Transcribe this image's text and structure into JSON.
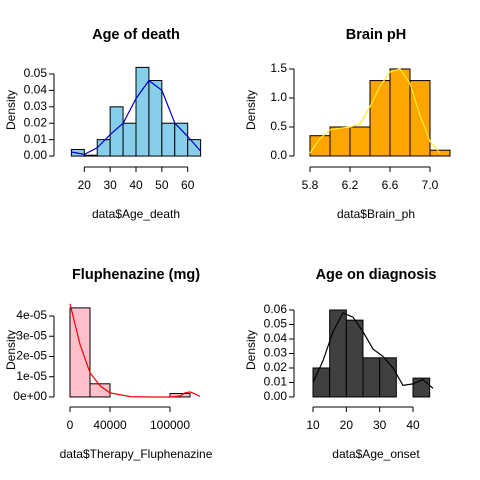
{
  "chart_data": [
    {
      "type": "histogram",
      "title": "Age of death",
      "xlabel": "data$Age_death",
      "ylabel": "Density",
      "bins": [
        15,
        20,
        25,
        30,
        35,
        40,
        45,
        50,
        55,
        60,
        65
      ],
      "values": [
        0.004,
        0.0005,
        0.01,
        0.03,
        0.02,
        0.054,
        0.046,
        0.02,
        0.02,
        0.01
      ],
      "color": "#87ceeb",
      "density": {
        "color": "#0000cd",
        "x": [
          15,
          20,
          25,
          30,
          35,
          40,
          45,
          50,
          55,
          60,
          65
        ],
        "y": [
          0.0025,
          0.001,
          0.005,
          0.013,
          0.02,
          0.035,
          0.046,
          0.04,
          0.02,
          0.012,
          0.003
        ]
      },
      "xlim": [
        10.6,
        69.4
      ],
      "ylim": [
        -0.0024,
        0.0585
      ],
      "xticks": [
        20,
        30,
        40,
        50,
        60
      ],
      "yticks": [
        {
          "value": 0,
          "label": "0.00"
        },
        0.01,
        0.02,
        0.03,
        0.04,
        0.05
      ]
    },
    {
      "type": "histogram",
      "title": "Brain pH",
      "xlabel": "data$Brain_ph",
      "ylabel": "Density",
      "bins": [
        5.8,
        6.0,
        6.2,
        6.4,
        6.6,
        6.8,
        7.0,
        7.2
      ],
      "values": [
        0.35,
        0.5,
        0.5,
        1.3,
        1.5,
        1.3,
        0.1
      ],
      "color": "#ffa500",
      "density": {
        "color": "#ffee33",
        "x": [
          5.8,
          5.9,
          6.0,
          6.1,
          6.2,
          6.3,
          6.4,
          6.5,
          6.6,
          6.7,
          6.8,
          6.9,
          7.0,
          7.1
        ],
        "y": [
          0.05,
          0.3,
          0.45,
          0.48,
          0.5,
          0.55,
          0.85,
          1.2,
          1.45,
          1.5,
          1.25,
          0.7,
          0.25,
          0.05
        ]
      },
      "xlim": [
        5.7,
        7.22
      ],
      "ylim": [
        -0.069,
        1.655
      ],
      "xticks": [
        5.8,
        6.2,
        6.6,
        {
          "value": 7.0,
          "label": "7.0"
        }
      ],
      "yticks": [
        {
          "value": 0,
          "label": "0.0"
        },
        0.5,
        {
          "value": 1,
          "label": "1.0"
        },
        1.5
      ]
    },
    {
      "type": "histogram",
      "title": "Fluphenazine (mg)",
      "xlabel": "data$Therapy_Fluphenazine",
      "ylabel": "Density",
      "bins": [
        0,
        20000,
        40000,
        60000,
        80000,
        100000,
        120000
      ],
      "values": [
        4.4e-05,
        6.5e-06,
        0,
        0,
        0,
        1.7e-06
      ],
      "color": "#ffc0cb",
      "density": {
        "color": "#ff0000",
        "x": [
          0,
          5000,
          10000,
          20000,
          30000,
          40000,
          60000,
          80000,
          100000,
          110000,
          115000,
          120000,
          125000,
          130000
        ],
        "y": [
          4.6e-05,
          3.6e-05,
          2.6e-05,
          1.2e-05,
          5.5e-06,
          2e-06,
          2e-07,
          0,
          0,
          5e-07,
          2e-06,
          2.5e-06,
          1.5e-06,
          3e-07
        ]
      },
      "xlim": [
        -10000,
        142000
      ],
      "ylim": [
        -1.5e-06,
        4.79e-05
      ],
      "xticks": [
        0,
        40000,
        100000
      ],
      "yticks": [
        {
          "value": 0,
          "label": "0e+00"
        },
        {
          "value": 1e-05,
          "label": "1e-05"
        },
        {
          "value": 2e-05,
          "label": "2e-05"
        },
        {
          "value": 3e-05,
          "label": "3e-05"
        },
        {
          "value": 4e-05,
          "label": "4e-05"
        }
      ]
    },
    {
      "type": "histogram",
      "title": "Age on diagnosis",
      "xlabel": "data$Age_onset",
      "ylabel": "Density",
      "bins": [
        10,
        15,
        20,
        25,
        30,
        35,
        40,
        45
      ],
      "values": [
        0.02,
        0.06,
        0.053,
        0.027,
        0.027,
        0,
        0.013
      ],
      "color": "#404040",
      "density": {
        "color": "#000000",
        "x": [
          10,
          13,
          16,
          19,
          22,
          25,
          28,
          31,
          34,
          37,
          40,
          43,
          46
        ],
        "y": [
          0.01,
          0.025,
          0.045,
          0.058,
          0.055,
          0.045,
          0.033,
          0.028,
          0.02,
          0.008,
          0.009,
          0.012,
          0.006
        ]
      },
      "xlim": [
        6.1,
        51.7
      ],
      "ylim": [
        -0.0021,
        0.0669
      ],
      "xticks": [
        10,
        20,
        30,
        40
      ],
      "yticks": [
        {
          "value": 0,
          "label": "0.00"
        },
        0.01,
        0.02,
        0.03,
        0.04,
        0.05,
        0.06
      ]
    }
  ]
}
